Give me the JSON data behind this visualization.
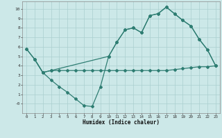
{
  "xlabel": "Humidex (Indice chaleur)",
  "bg_color": "#cce8e8",
  "line_color": "#2e7d72",
  "grid_color": "#aacfcf",
  "xlim": [
    -0.5,
    23.5
  ],
  "ylim": [
    -1.0,
    10.8
  ],
  "xticks": [
    0,
    1,
    2,
    3,
    4,
    5,
    6,
    7,
    8,
    9,
    10,
    11,
    12,
    13,
    14,
    15,
    16,
    17,
    18,
    19,
    20,
    21,
    22,
    23
  ],
  "yticks": [
    0,
    1,
    2,
    3,
    4,
    5,
    6,
    7,
    8,
    9,
    10
  ],
  "ytick_labels": [
    "-0",
    "1",
    "2",
    "3",
    "4",
    "5",
    "6",
    "7",
    "8",
    "9",
    "10"
  ],
  "curve1_x": [
    0,
    1,
    2,
    3,
    10,
    11,
    12,
    13,
    14,
    15,
    16,
    17,
    18,
    19,
    20,
    21,
    22,
    23
  ],
  "curve1_y": [
    5.8,
    4.7,
    3.3,
    3.5,
    5.0,
    6.5,
    7.8,
    8.0,
    7.5,
    9.3,
    9.5,
    10.2,
    9.5,
    8.8,
    8.2,
    6.8,
    5.7,
    4.0
  ],
  "curve2_x": [
    0,
    1,
    2,
    3,
    4,
    5,
    6,
    7,
    8,
    9,
    10,
    11,
    12,
    13,
    14,
    15,
    16,
    17,
    18,
    19,
    20,
    21,
    22,
    23
  ],
  "curve2_y": [
    5.8,
    4.7,
    3.3,
    2.5,
    1.8,
    1.2,
    0.5,
    -0.2,
    -0.3,
    1.8,
    5.0,
    6.5,
    7.8,
    8.0,
    7.5,
    9.3,
    9.5,
    10.2,
    9.5,
    8.8,
    8.2,
    6.8,
    5.7,
    4.0
  ],
  "curve3_x": [
    1,
    2,
    3,
    4,
    5,
    6,
    7,
    8,
    9,
    10,
    11,
    12,
    13,
    14,
    15,
    16,
    17,
    18,
    19,
    20,
    21,
    22,
    23
  ],
  "curve3_y": [
    4.7,
    3.3,
    3.5,
    3.5,
    3.5,
    3.5,
    3.5,
    3.5,
    3.5,
    3.5,
    3.5,
    3.5,
    3.5,
    3.5,
    3.5,
    3.5,
    3.5,
    3.6,
    3.7,
    3.8,
    3.9,
    3.9,
    4.0
  ]
}
